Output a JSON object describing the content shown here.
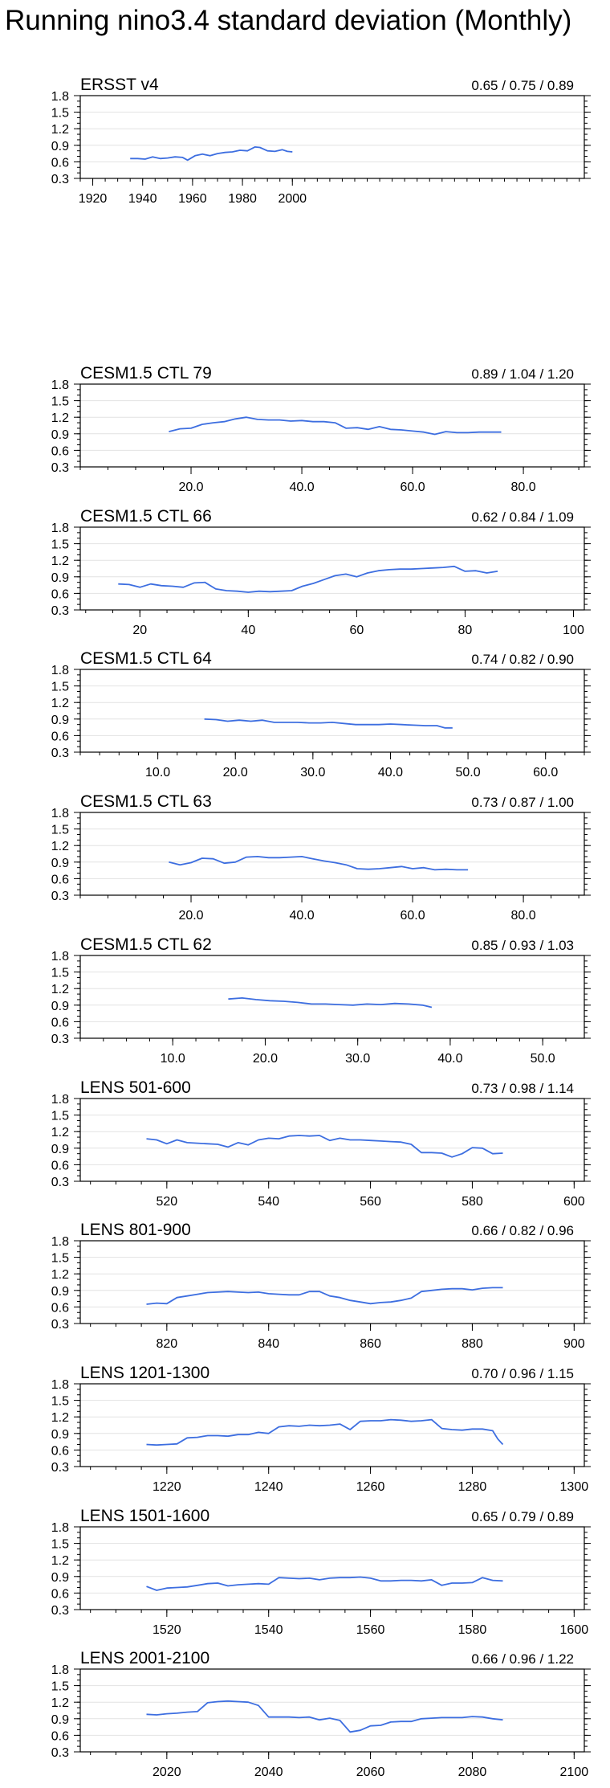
{
  "title": "Running nino3.4 standard deviation (Monthly)",
  "line_color": "#3d6ee0",
  "chart_data": [
    {
      "type": "line",
      "title": "ERSST v4",
      "stats": "0.65 / 0.75 / 0.89",
      "xlim": [
        1915,
        2117
      ],
      "xticks": [
        1920,
        1940,
        1960,
        1980,
        2000
      ],
      "xtick_labels": [
        "1920",
        "1940",
        "1960",
        "1980",
        "2000"
      ],
      "ylim": [
        0.3,
        1.8
      ],
      "yticks": [
        0.3,
        0.6,
        0.9,
        1.2,
        1.5,
        1.8
      ],
      "ytick_labels": [
        "0.3",
        "0.6",
        "0.9",
        "1.2",
        "1.5",
        "1.8"
      ],
      "x": [
        1935,
        1938,
        1941,
        1944,
        1947,
        1950,
        1953,
        1956,
        1958,
        1961,
        1964,
        1967,
        1970,
        1973,
        1976,
        1979,
        1982,
        1985,
        1987,
        1990,
        1993,
        1996,
        1998,
        2000
      ],
      "y": [
        0.66,
        0.66,
        0.65,
        0.69,
        0.66,
        0.67,
        0.69,
        0.68,
        0.63,
        0.71,
        0.74,
        0.71,
        0.75,
        0.77,
        0.78,
        0.81,
        0.8,
        0.87,
        0.86,
        0.8,
        0.79,
        0.82,
        0.79,
        0.78
      ]
    },
    {
      "type": "line",
      "title": "CESM1.5 CTL 79",
      "stats": "0.89 / 1.04 / 1.20",
      "xlim": [
        0,
        91
      ],
      "xticks": [
        20,
        40,
        60,
        80
      ],
      "xtick_labels": [
        "20.0",
        "40.0",
        "60.0",
        "80.0"
      ],
      "ylim": [
        0.3,
        1.8
      ],
      "yticks": [
        0.3,
        0.6,
        0.9,
        1.2,
        1.5,
        1.8
      ],
      "ytick_labels": [
        "0.3",
        "0.6",
        "0.9",
        "1.2",
        "1.5",
        "1.8"
      ],
      "x": [
        16,
        18,
        20,
        22,
        24,
        26,
        28,
        30,
        32,
        34,
        36,
        38,
        40,
        42,
        44,
        46,
        48,
        50,
        52,
        54,
        56,
        58,
        60,
        62,
        64,
        66,
        68,
        70,
        72,
        74,
        76
      ],
      "y": [
        0.94,
        0.99,
        1.0,
        1.07,
        1.1,
        1.12,
        1.17,
        1.2,
        1.16,
        1.15,
        1.15,
        1.13,
        1.14,
        1.12,
        1.12,
        1.1,
        1.0,
        1.01,
        0.98,
        1.03,
        0.98,
        0.97,
        0.95,
        0.93,
        0.89,
        0.94,
        0.92,
        0.92,
        0.93,
        0.93,
        0.93
      ]
    },
    {
      "type": "line",
      "title": "CESM1.5 CTL 66",
      "stats": "0.62 / 0.84 / 1.09",
      "xlim": [
        9,
        102
      ],
      "xticks": [
        20,
        40,
        60,
        80,
        100
      ],
      "xtick_labels": [
        "20",
        "40",
        "60",
        "80",
        "100"
      ],
      "ylim": [
        0.3,
        1.8
      ],
      "yticks": [
        0.3,
        0.6,
        0.9,
        1.2,
        1.5,
        1.8
      ],
      "ytick_labels": [
        "0.3",
        "0.6",
        "0.9",
        "1.2",
        "1.5",
        "1.8"
      ],
      "x": [
        16,
        18,
        20,
        22,
        24,
        26,
        28,
        30,
        32,
        34,
        36,
        38,
        40,
        42,
        44,
        46,
        48,
        50,
        52,
        54,
        56,
        58,
        60,
        62,
        64,
        66,
        68,
        70,
        72,
        74,
        76,
        78,
        80,
        82,
        84,
        86
      ],
      "y": [
        0.77,
        0.76,
        0.71,
        0.77,
        0.74,
        0.73,
        0.71,
        0.79,
        0.8,
        0.68,
        0.65,
        0.64,
        0.62,
        0.64,
        0.63,
        0.64,
        0.65,
        0.73,
        0.78,
        0.85,
        0.92,
        0.95,
        0.9,
        0.97,
        1.01,
        1.03,
        1.04,
        1.04,
        1.05,
        1.06,
        1.07,
        1.09,
        1.0,
        1.01,
        0.97,
        1.0
      ]
    },
    {
      "type": "line",
      "title": "CESM1.5 CTL 64",
      "stats": "0.74 / 0.82 / 0.90",
      "xlim": [
        0,
        65
      ],
      "xticks": [
        10,
        20,
        30,
        40,
        50,
        60
      ],
      "xtick_labels": [
        "10.0",
        "20.0",
        "30.0",
        "40.0",
        "50.0",
        "60.0"
      ],
      "ylim": [
        0.3,
        1.8
      ],
      "yticks": [
        0.3,
        0.6,
        0.9,
        1.2,
        1.5,
        1.8
      ],
      "ytick_labels": [
        "0.3",
        "0.6",
        "0.9",
        "1.2",
        "1.5",
        "1.8"
      ],
      "x": [
        16,
        17.5,
        19,
        20.5,
        22,
        23.5,
        25,
        26.5,
        28,
        29.5,
        31,
        32.5,
        34,
        35.5,
        37,
        38.5,
        40,
        41.5,
        43,
        44.5,
        46,
        47,
        48
      ],
      "y": [
        0.9,
        0.89,
        0.86,
        0.88,
        0.86,
        0.88,
        0.84,
        0.84,
        0.84,
        0.83,
        0.83,
        0.84,
        0.82,
        0.8,
        0.8,
        0.8,
        0.81,
        0.8,
        0.79,
        0.78,
        0.78,
        0.74,
        0.74
      ]
    },
    {
      "type": "line",
      "title": "CESM1.5 CTL 63",
      "stats": "0.73 / 0.87 / 1.00",
      "xlim": [
        0,
        91
      ],
      "xticks": [
        20,
        40,
        60,
        80
      ],
      "xtick_labels": [
        "20.0",
        "40.0",
        "60.0",
        "80.0"
      ],
      "ylim": [
        0.3,
        1.8
      ],
      "yticks": [
        0.3,
        0.6,
        0.9,
        1.2,
        1.5,
        1.8
      ],
      "ytick_labels": [
        "0.3",
        "0.6",
        "0.9",
        "1.2",
        "1.5",
        "1.8"
      ],
      "x": [
        16,
        18,
        20,
        22,
        24,
        26,
        28,
        30,
        32,
        34,
        36,
        38,
        40,
        42,
        44,
        46,
        48,
        50,
        52,
        54,
        56,
        58,
        60,
        62,
        64,
        66,
        68,
        70
      ],
      "y": [
        0.9,
        0.85,
        0.89,
        0.97,
        0.96,
        0.88,
        0.9,
        0.99,
        1.0,
        0.98,
        0.98,
        0.99,
        1.0,
        0.96,
        0.92,
        0.89,
        0.85,
        0.78,
        0.77,
        0.78,
        0.8,
        0.82,
        0.78,
        0.8,
        0.76,
        0.77,
        0.76,
        0.76
      ]
    },
    {
      "type": "line",
      "title": "CESM1.5 CTL 62",
      "stats": "0.85 / 0.93 / 1.03",
      "xlim": [
        0,
        54.5
      ],
      "xticks": [
        10,
        20,
        30,
        40,
        50
      ],
      "xtick_labels": [
        "10.0",
        "20.0",
        "30.0",
        "40.0",
        "50.0"
      ],
      "ylim": [
        0.3,
        1.8
      ],
      "yticks": [
        0.3,
        0.6,
        0.9,
        1.2,
        1.5,
        1.8
      ],
      "ytick_labels": [
        "0.3",
        "0.6",
        "0.9",
        "1.2",
        "1.5",
        "1.8"
      ],
      "x": [
        16,
        17.5,
        19,
        20.5,
        22,
        23.5,
        25,
        26.5,
        28,
        29.5,
        31,
        32.5,
        34,
        35.5,
        37,
        38
      ],
      "y": [
        1.01,
        1.03,
        1.0,
        0.98,
        0.97,
        0.95,
        0.92,
        0.92,
        0.91,
        0.9,
        0.92,
        0.91,
        0.93,
        0.92,
        0.9,
        0.86
      ]
    },
    {
      "type": "line",
      "title": "LENS 501-600",
      "stats": "0.73 / 0.98 / 1.14",
      "xlim": [
        503,
        602
      ],
      "xticks": [
        520,
        540,
        560,
        580,
        600
      ],
      "xtick_labels": [
        "520",
        "540",
        "560",
        "580",
        "600"
      ],
      "ylim": [
        0.3,
        1.8
      ],
      "yticks": [
        0.3,
        0.6,
        0.9,
        1.2,
        1.5,
        1.8
      ],
      "ytick_labels": [
        "0.3",
        "0.6",
        "0.9",
        "1.2",
        "1.5",
        "1.8"
      ],
      "x": [
        516,
        518,
        520,
        522,
        524,
        526,
        528,
        530,
        532,
        534,
        536,
        538,
        540,
        542,
        544,
        546,
        548,
        550,
        552,
        554,
        556,
        558,
        560,
        562,
        564,
        566,
        568,
        570,
        572,
        574,
        576,
        578,
        580,
        582,
        584,
        586
      ],
      "y": [
        1.07,
        1.05,
        0.98,
        1.05,
        1.0,
        0.99,
        0.98,
        0.97,
        0.92,
        1.0,
        0.96,
        1.05,
        1.08,
        1.07,
        1.12,
        1.13,
        1.12,
        1.13,
        1.04,
        1.08,
        1.05,
        1.05,
        1.04,
        1.03,
        1.02,
        1.01,
        0.97,
        0.82,
        0.82,
        0.81,
        0.74,
        0.8,
        0.91,
        0.9,
        0.8,
        0.81
      ]
    },
    {
      "type": "line",
      "title": "LENS 801-900",
      "stats": "0.66 / 0.82 / 0.96",
      "xlim": [
        803,
        902
      ],
      "xticks": [
        820,
        840,
        860,
        880,
        900
      ],
      "xtick_labels": [
        "820",
        "840",
        "860",
        "880",
        "900"
      ],
      "ylim": [
        0.3,
        1.8
      ],
      "yticks": [
        0.3,
        0.6,
        0.9,
        1.2,
        1.5,
        1.8
      ],
      "ytick_labels": [
        "0.3",
        "0.6",
        "0.9",
        "1.2",
        "1.5",
        "1.8"
      ],
      "x": [
        816,
        818,
        820,
        822,
        824,
        826,
        828,
        830,
        832,
        834,
        836,
        838,
        840,
        842,
        844,
        846,
        848,
        850,
        852,
        854,
        856,
        858,
        860,
        862,
        864,
        866,
        868,
        870,
        872,
        874,
        876,
        878,
        880,
        882,
        884,
        886
      ],
      "y": [
        0.65,
        0.67,
        0.66,
        0.77,
        0.8,
        0.83,
        0.86,
        0.87,
        0.88,
        0.87,
        0.86,
        0.87,
        0.84,
        0.83,
        0.82,
        0.82,
        0.88,
        0.88,
        0.8,
        0.77,
        0.72,
        0.69,
        0.66,
        0.68,
        0.69,
        0.72,
        0.76,
        0.88,
        0.9,
        0.92,
        0.93,
        0.93,
        0.91,
        0.94,
        0.95,
        0.95
      ]
    },
    {
      "type": "line",
      "title": "LENS 1201-1300",
      "stats": "0.70 / 0.96 / 1.15",
      "xlim": [
        1203,
        1302
      ],
      "xticks": [
        1220,
        1240,
        1260,
        1280,
        1300
      ],
      "xtick_labels": [
        "1220",
        "1240",
        "1260",
        "1280",
        "1300"
      ],
      "ylim": [
        0.3,
        1.8
      ],
      "yticks": [
        0.3,
        0.6,
        0.9,
        1.2,
        1.5,
        1.8
      ],
      "ytick_labels": [
        "0.3",
        "0.6",
        "0.9",
        "1.2",
        "1.5",
        "1.8"
      ],
      "x": [
        1216,
        1218,
        1220,
        1222,
        1224,
        1226,
        1228,
        1230,
        1232,
        1234,
        1236,
        1238,
        1240,
        1242,
        1244,
        1246,
        1248,
        1250,
        1252,
        1254,
        1256,
        1258,
        1260,
        1262,
        1264,
        1266,
        1268,
        1270,
        1272,
        1274,
        1276,
        1278,
        1280,
        1282,
        1284,
        1285,
        1286
      ],
      "y": [
        0.7,
        0.69,
        0.7,
        0.71,
        0.82,
        0.83,
        0.86,
        0.86,
        0.85,
        0.88,
        0.88,
        0.92,
        0.9,
        1.02,
        1.04,
        1.03,
        1.05,
        1.04,
        1.05,
        1.07,
        0.97,
        1.12,
        1.13,
        1.13,
        1.15,
        1.14,
        1.12,
        1.13,
        1.15,
        0.99,
        0.97,
        0.96,
        0.98,
        0.98,
        0.95,
        0.8,
        0.7
      ]
    },
    {
      "type": "line",
      "title": "LENS 1501-1600",
      "stats": "0.65 / 0.79 / 0.89",
      "xlim": [
        1503,
        1602
      ],
      "xticks": [
        1520,
        1540,
        1560,
        1580,
        1600
      ],
      "xtick_labels": [
        "1520",
        "1540",
        "1560",
        "1580",
        "1600"
      ],
      "ylim": [
        0.3,
        1.8
      ],
      "yticks": [
        0.3,
        0.6,
        0.9,
        1.2,
        1.5,
        1.8
      ],
      "ytick_labels": [
        "0.3",
        "0.6",
        "0.9",
        "1.2",
        "1.5",
        "1.8"
      ],
      "x": [
        1516,
        1518,
        1520,
        1522,
        1524,
        1526,
        1528,
        1530,
        1532,
        1534,
        1536,
        1538,
        1540,
        1542,
        1544,
        1546,
        1548,
        1550,
        1552,
        1554,
        1556,
        1558,
        1560,
        1562,
        1564,
        1566,
        1568,
        1570,
        1572,
        1574,
        1576,
        1578,
        1580,
        1582,
        1584,
        1586
      ],
      "y": [
        0.72,
        0.65,
        0.69,
        0.7,
        0.71,
        0.74,
        0.77,
        0.78,
        0.73,
        0.75,
        0.76,
        0.77,
        0.76,
        0.88,
        0.87,
        0.86,
        0.87,
        0.84,
        0.87,
        0.88,
        0.88,
        0.89,
        0.87,
        0.82,
        0.82,
        0.83,
        0.83,
        0.82,
        0.84,
        0.74,
        0.78,
        0.78,
        0.79,
        0.88,
        0.83,
        0.82
      ]
    },
    {
      "type": "line",
      "title": "LENS 2001-2100",
      "stats": "0.66 / 0.96 / 1.22",
      "xlim": [
        2003,
        2102
      ],
      "xticks": [
        2020,
        2040,
        2060,
        2080,
        2100
      ],
      "xtick_labels": [
        "2020",
        "2040",
        "2060",
        "2080",
        "2100"
      ],
      "ylim": [
        0.3,
        1.8
      ],
      "yticks": [
        0.3,
        0.6,
        0.9,
        1.2,
        1.5,
        1.8
      ],
      "ytick_labels": [
        "0.3",
        "0.6",
        "0.9",
        "1.2",
        "1.5",
        "1.8"
      ],
      "x": [
        2016,
        2018,
        2020,
        2022,
        2024,
        2026,
        2028,
        2030,
        2032,
        2034,
        2036,
        2038,
        2040,
        2042,
        2044,
        2046,
        2048,
        2050,
        2052,
        2054,
        2056,
        2058,
        2060,
        2062,
        2064,
        2066,
        2068,
        2070,
        2072,
        2074,
        2076,
        2078,
        2080,
        2082,
        2084,
        2086
      ],
      "y": [
        0.98,
        0.97,
        0.99,
        1.0,
        1.02,
        1.03,
        1.19,
        1.21,
        1.22,
        1.21,
        1.2,
        1.14,
        0.93,
        0.93,
        0.93,
        0.92,
        0.93,
        0.88,
        0.91,
        0.87,
        0.66,
        0.69,
        0.77,
        0.78,
        0.84,
        0.85,
        0.85,
        0.9,
        0.91,
        0.92,
        0.92,
        0.92,
        0.94,
        0.93,
        0.9,
        0.88
      ]
    }
  ]
}
